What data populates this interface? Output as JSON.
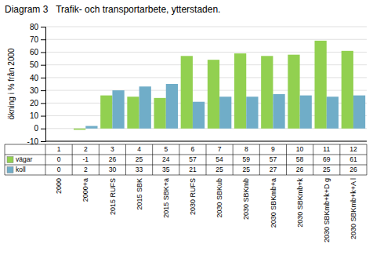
{
  "chart_data": {
    "type": "bar",
    "title": "Diagram 3   Trafik- och transportarbete, ytterstaden.",
    "categories": [
      "2000",
      "2000+a",
      "2015 RUFS",
      "2015 SBK",
      "2015 SBK+a",
      "2030 RUFS",
      "2030 SBKub",
      "2030 SBKmb",
      "2030 SBKmb+a",
      "2030 SBKmb+k",
      "2030 SBKmb+k+D g",
      "2030 SBKmb+k+A l"
    ],
    "column_labels": [
      "1",
      "2",
      "3",
      "4",
      "5",
      "6",
      "7",
      "8",
      "9",
      "10",
      "11",
      "12"
    ],
    "series": [
      {
        "name": "vägar",
        "color": "#92d050",
        "values": [
          0,
          -1,
          26,
          25,
          24,
          57,
          54,
          59,
          57,
          58,
          69,
          61
        ]
      },
      {
        "name": "koll",
        "color": "#70adc8",
        "values": [
          0,
          2,
          30,
          33,
          35,
          21,
          25,
          25,
          27,
          26,
          25,
          26
        ]
      }
    ],
    "ylabel": "ökning i % från 2000",
    "ylim": [
      -10,
      80
    ],
    "yticks": [
      -10,
      0,
      10,
      20,
      30,
      40,
      50,
      60,
      70,
      80
    ],
    "grid": true,
    "legend": "bottom",
    "data_labels": true
  }
}
